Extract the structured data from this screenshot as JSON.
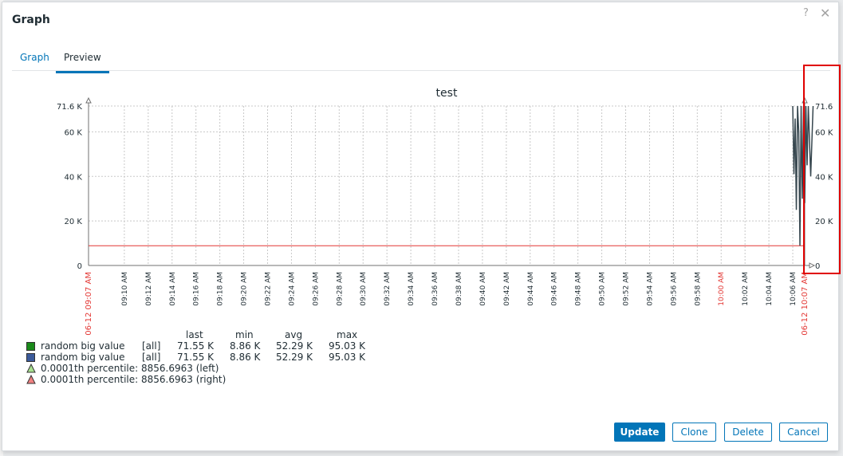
{
  "dialog": {
    "title": "Graph",
    "help_label": "?",
    "close_label": "✕"
  },
  "tabs": [
    {
      "label": "Graph",
      "active": false
    },
    {
      "label": "Preview",
      "active": true
    }
  ],
  "chart_data": {
    "type": "line",
    "title": "test",
    "y_left_ticks": [
      "71.6 K",
      "60 K",
      "40 K",
      "20 K",
      "0"
    ],
    "y_right_ticks": [
      "71.6",
      "60 K",
      "40 K",
      "20 K",
      "0"
    ],
    "ylim": [
      0,
      71600
    ],
    "x_start_label": "06-12 09:07 AM",
    "x_end_label": "06-12 10:07 AM",
    "x_tick_labels": [
      "09:10 AM",
      "09:12 AM",
      "09:14 AM",
      "09:16 AM",
      "09:18 AM",
      "09:20 AM",
      "09:22 AM",
      "09:24 AM",
      "09:26 AM",
      "09:28 AM",
      "09:30 AM",
      "09:32 AM",
      "09:34 AM",
      "09:36 AM",
      "09:38 AM",
      "09:40 AM",
      "09:42 AM",
      "09:44 AM",
      "09:46 AM",
      "09:48 AM",
      "09:50 AM",
      "09:52 AM",
      "09:54 AM",
      "09:56 AM",
      "09:58 AM",
      "10:00 AM",
      "10:02 AM",
      "10:04 AM",
      "10:06 AM"
    ],
    "x_tick_minutes": [
      3,
      5,
      7,
      9,
      11,
      13,
      15,
      17,
      19,
      21,
      23,
      25,
      27,
      29,
      31,
      33,
      35,
      37,
      39,
      41,
      43,
      45,
      47,
      49,
      51,
      53,
      55,
      57,
      59
    ],
    "x_red_minutes": [
      0,
      53,
      60
    ],
    "percentile_value": 8856.6963,
    "series": [
      {
        "name": "random big value",
        "color": "#37474f",
        "x_minutes": [
          59.0,
          59.1,
          59.2,
          59.3,
          59.4,
          59.5,
          59.6,
          59.7,
          59.8,
          59.9,
          60.0,
          60.1,
          60.2,
          60.3,
          60.5,
          60.7
        ],
        "values": [
          71600,
          41000,
          66000,
          25000,
          71600,
          60000,
          8860,
          71600,
          30000,
          71600,
          28000,
          71600,
          45000,
          71600,
          40000,
          71600
        ]
      }
    ],
    "colors": {
      "grid": "#c8c8c8",
      "axis": "#707070",
      "red_label": "#e33734",
      "percentile_line": "#e33734"
    }
  },
  "legend": {
    "headers": [
      "last",
      "min",
      "avg",
      "max"
    ],
    "items": [
      {
        "color": "#1a8a1a",
        "name": "random big value",
        "func": "[all]",
        "last": "71.55 K",
        "min": "8.86 K",
        "avg": "52.29 K",
        "max": "95.03 K"
      },
      {
        "color": "#3b5a9a",
        "name": "random big value",
        "func": "[all]",
        "last": "71.55 K",
        "min": "8.86 K",
        "avg": "52.29 K",
        "max": "95.03 K"
      }
    ],
    "percentiles": [
      {
        "color": "#a8e08f",
        "text": "0.0001th percentile: 8856.6963 (left)"
      },
      {
        "color": "#f08080",
        "text": "0.0001th percentile: 8856.6963 (right)"
      }
    ]
  },
  "buttons": {
    "update": "Update",
    "clone": "Clone",
    "delete": "Delete",
    "cancel": "Cancel"
  }
}
